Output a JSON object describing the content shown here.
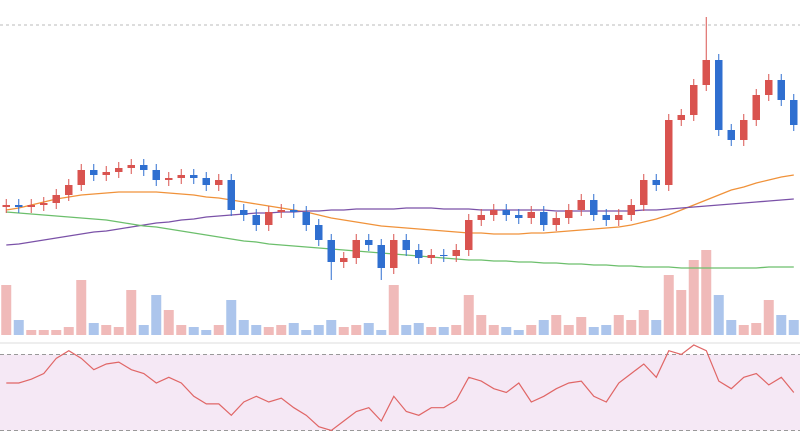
{
  "chart_data": {
    "type": "candlestick",
    "open": [
      128,
      130,
      128,
      130,
      132,
      140,
      150,
      165,
      160,
      163,
      167,
      170,
      165,
      155,
      157,
      160,
      157,
      150,
      155,
      125,
      120,
      110,
      123,
      125,
      123,
      110,
      95,
      73,
      77,
      95,
      90,
      67,
      95,
      85,
      77,
      80,
      79,
      85,
      115,
      120,
      125,
      120,
      117,
      123,
      110,
      117,
      125,
      135,
      120,
      115,
      120,
      130,
      155,
      150,
      215,
      220,
      250,
      275,
      205,
      195,
      215,
      240,
      255,
      235
    ],
    "high": [
      136,
      136,
      136,
      138,
      146,
      156,
      171,
      171,
      169,
      173,
      176,
      176,
      171,
      163,
      166,
      166,
      163,
      161,
      161,
      131,
      126,
      129,
      131,
      131,
      129,
      116,
      101,
      83,
      101,
      101,
      96,
      101,
      101,
      91,
      86,
      86,
      91,
      121,
      126,
      131,
      131,
      126,
      129,
      129,
      123,
      131,
      141,
      141,
      126,
      126,
      136,
      161,
      161,
      221,
      226,
      256,
      318,
      281,
      211,
      221,
      246,
      261,
      261,
      241
    ],
    "low": [
      122,
      122,
      122,
      124,
      126,
      134,
      144,
      154,
      154,
      157,
      161,
      159,
      149,
      149,
      151,
      151,
      144,
      144,
      119,
      114,
      104,
      104,
      117,
      117,
      104,
      89,
      55,
      67,
      71,
      84,
      55,
      61,
      79,
      71,
      71,
      73,
      73,
      79,
      109,
      114,
      114,
      111,
      111,
      104,
      104,
      111,
      119,
      114,
      109,
      109,
      114,
      124,
      144,
      144,
      209,
      214,
      244,
      199,
      189,
      189,
      209,
      234,
      229,
      204
    ],
    "close": [
      130,
      128,
      130,
      132,
      140,
      150,
      165,
      160,
      163,
      167,
      170,
      165,
      155,
      157,
      160,
      157,
      150,
      155,
      125,
      120,
      110,
      123,
      125,
      123,
      110,
      95,
      73,
      77,
      95,
      90,
      67,
      95,
      85,
      77,
      80,
      79,
      85,
      115,
      120,
      125,
      120,
      117,
      123,
      110,
      117,
      125,
      135,
      120,
      115,
      120,
      130,
      155,
      150,
      215,
      220,
      250,
      275,
      205,
      195,
      215,
      240,
      255,
      235,
      210
    ],
    "volume": [
      50,
      15,
      5,
      5,
      5,
      8,
      55,
      12,
      10,
      8,
      45,
      10,
      40,
      25,
      10,
      8,
      5,
      10,
      35,
      15,
      10,
      8,
      10,
      12,
      5,
      10,
      15,
      8,
      10,
      12,
      5,
      50,
      10,
      12,
      8,
      8,
      10,
      40,
      20,
      10,
      8,
      5,
      10,
      15,
      20,
      10,
      18,
      8,
      10,
      20,
      15,
      25,
      15,
      60,
      45,
      75,
      85,
      40,
      15,
      10,
      12,
      35,
      20,
      15
    ],
    "rsi": [
      55,
      55,
      57,
      60,
      68,
      72,
      68,
      62,
      65,
      66,
      62,
      60,
      55,
      58,
      55,
      48,
      44,
      44,
      38,
      45,
      48,
      45,
      47,
      42,
      38,
      32,
      30,
      35,
      40,
      42,
      35,
      48,
      40,
      38,
      42,
      42,
      46,
      58,
      56,
      52,
      50,
      55,
      45,
      48,
      52,
      55,
      56,
      48,
      45,
      55,
      60,
      65,
      58,
      72,
      70,
      75,
      72,
      56,
      52,
      58,
      60,
      54,
      58,
      50
    ],
    "series": [
      {
        "color": "#f0923a",
        "values": [
          125,
          127,
          130,
          133,
          136,
          138,
          140,
          141,
          142,
          143,
          143,
          143,
          143,
          142,
          141,
          140,
          138,
          137,
          135,
          133,
          131,
          129,
          127,
          125,
          123,
          120,
          117,
          115,
          113,
          111,
          109,
          108,
          107,
          106,
          105,
          104,
          103,
          102,
          102,
          101,
          101,
          101,
          102,
          102,
          103,
          104,
          105,
          106,
          107,
          108,
          110,
          113,
          116,
          120,
          125,
          130,
          135,
          140,
          145,
          148,
          152,
          155,
          158,
          160
        ]
      },
      {
        "color": "#7b52a8",
        "values": [
          90,
          91,
          93,
          95,
          97,
          99,
          101,
          103,
          104,
          106,
          108,
          110,
          112,
          113,
          115,
          116,
          118,
          119,
          120,
          121,
          122,
          122,
          123,
          123,
          124,
          124,
          125,
          125,
          126,
          126,
          126,
          126,
          127,
          127,
          127,
          126,
          126,
          126,
          125,
          125,
          125,
          125,
          125,
          125,
          124,
          124,
          124,
          124,
          124,
          124,
          124,
          125,
          125,
          126,
          127,
          128,
          129,
          130,
          131,
          132,
          133,
          134,
          135,
          136
        ]
      },
      {
        "color": "#6cbf6c",
        "values": [
          123,
          122,
          121,
          120,
          119,
          118,
          117,
          116,
          115,
          113,
          111,
          109,
          108,
          106,
          104,
          102,
          100,
          98,
          96,
          94,
          93,
          91,
          90,
          89,
          88,
          87,
          86,
          85,
          84,
          83,
          82,
          81,
          80,
          79,
          78,
          77,
          76,
          75,
          75,
          74,
          74,
          73,
          73,
          72,
          72,
          71,
          71,
          70,
          70,
          69,
          69,
          68,
          68,
          68,
          67,
          67,
          67,
          67,
          67,
          67,
          67,
          68,
          68,
          68
        ]
      }
    ],
    "up_color": "#d9534f",
    "down_color": "#2f6fd0",
    "ylim": [
      0,
      310
    ],
    "rsi_ylim": [
      25,
      75
    ],
    "rsi_levels": [
      70,
      30
    ],
    "rsi_color": "#e06666"
  }
}
